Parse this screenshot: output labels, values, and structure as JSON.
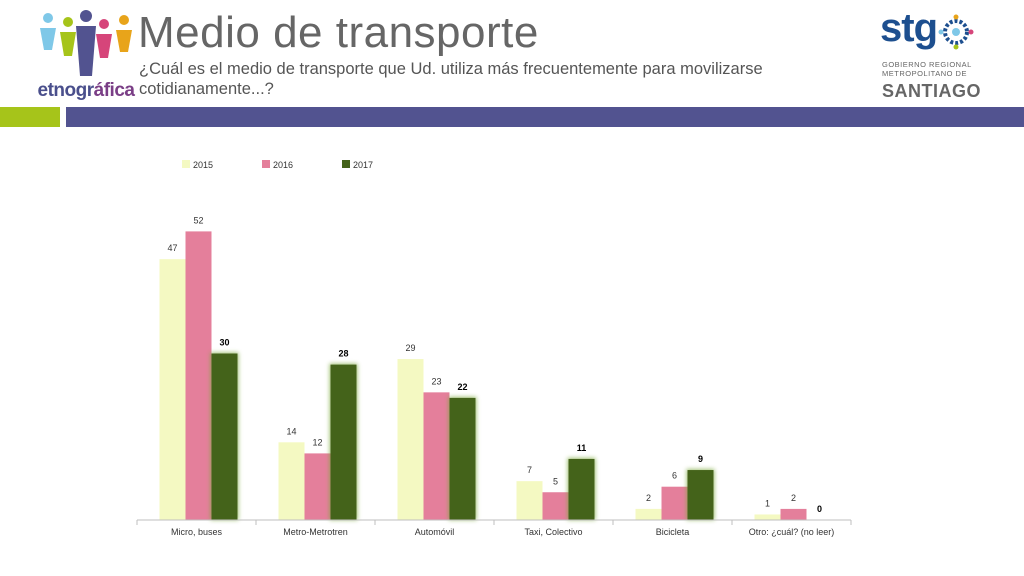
{
  "header": {
    "title": "Medio de transporte",
    "subtitle": "¿Cuál es el medio de transporte que Ud. utiliza más frecuentemente para movilizarse cotidianamente...?"
  },
  "logos": {
    "left_brand_main": "etnogr",
    "left_brand_accent": "áfica",
    "right_brand": "stg",
    "right_org_line1": "GOBIERNO REGIONAL",
    "right_org_line2": "METROPOLITANO DE",
    "right_org_line3": "SANTIAGO"
  },
  "colors": {
    "band_green": "#a6c41a",
    "band_purple": "#525390",
    "series_2015": "#f4f9c2",
    "series_2016": "#e47f9b",
    "series_2017": "#44631a"
  },
  "chart_data": {
    "type": "bar",
    "title": "",
    "xlabel": "",
    "ylabel": "",
    "ylim": [
      0,
      55
    ],
    "legend_position": "top-left",
    "categories": [
      "Micro, buses",
      "Metro-Metrotren",
      "Automóvil",
      "Taxi, Colectivo",
      "Bicicleta",
      "Otro: ¿cuál? (no leer)"
    ],
    "series": [
      {
        "name": "2015",
        "values": [
          47,
          14,
          29,
          7,
          2,
          1
        ],
        "color": "#f4f9c2",
        "labels": [
          "47",
          "14",
          "29",
          "7",
          "2",
          "1"
        ]
      },
      {
        "name": "2016",
        "values": [
          52,
          12,
          23,
          5,
          6,
          2
        ],
        "color": "#e47f9b",
        "labels": [
          "52",
          "12",
          "23",
          "5",
          "6",
          "2"
        ]
      },
      {
        "name": "2017",
        "values": [
          30,
          28,
          22,
          11,
          9,
          0
        ],
        "color": "#44631a",
        "labels": [
          "30",
          "28",
          "22",
          "11",
          "9",
          "0"
        ],
        "bold_labels": true
      }
    ]
  }
}
